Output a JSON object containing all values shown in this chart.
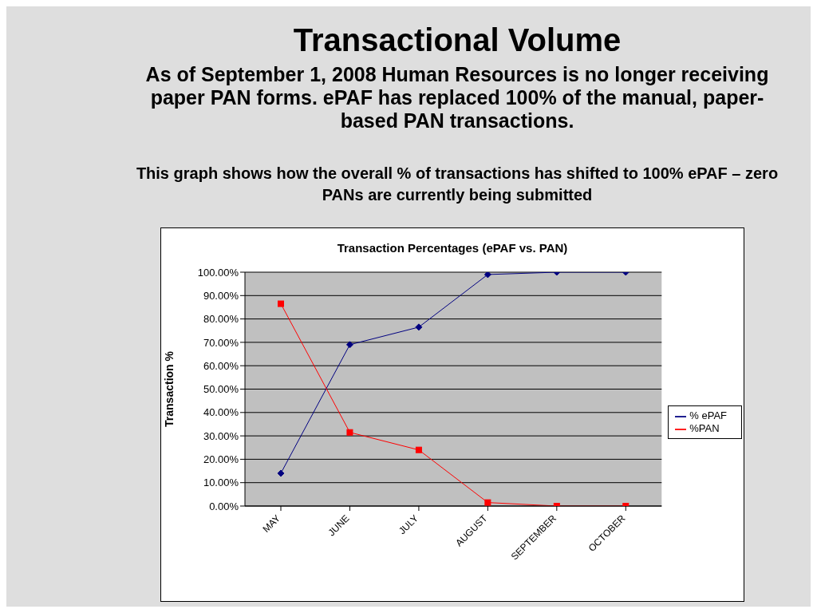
{
  "chart_data": {
    "type": "line",
    "title": "Transaction Percentages (ePAF vs. PAN)",
    "ylabel": "Transaction %",
    "annotations": [
      "Transactional Volume",
      "As of September 1, 2008 Human Resources is no longer receiving paper PAN forms. ePAF has replaced 100% of the manual, paper-based PAN transactions.",
      "This graph shows how the overall % of transactions has shifted to 100% ePAF – zero PANs are currently being submitted"
    ],
    "categories": [
      "MAY",
      "JUNE",
      "JULY",
      "AUGUST",
      "SEPTEMBER",
      "OCTOBER"
    ],
    "series": [
      {
        "name": "% ePAF",
        "color": "#000080",
        "marker": "diamond",
        "values": [
          14,
          69,
          76.5,
          99,
          100,
          100
        ]
      },
      {
        "name": "%PAN",
        "color": "#ff0000",
        "marker": "square",
        "values": [
          86.5,
          31.5,
          24,
          1.5,
          0,
          0
        ]
      }
    ],
    "ylim": [
      0,
      100
    ],
    "yticks": [
      {
        "value": 0,
        "label": "0.00%"
      },
      {
        "value": 10,
        "label": "10.00%"
      },
      {
        "value": 20,
        "label": "20.00%"
      },
      {
        "value": 30,
        "label": "30.00%"
      },
      {
        "value": 40,
        "label": "40.00%"
      },
      {
        "value": 50,
        "label": "50.00%"
      },
      {
        "value": 60,
        "label": "60.00%"
      },
      {
        "value": 70,
        "label": "70.00%"
      },
      {
        "value": 80,
        "label": "80.00%"
      },
      {
        "value": 90,
        "label": "90.00%"
      },
      {
        "value": 100,
        "label": "100.00%"
      }
    ],
    "grid": "y",
    "legend": "right",
    "line_style": "solid"
  }
}
